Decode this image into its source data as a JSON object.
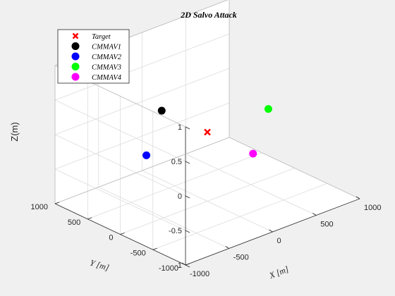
{
  "chart_data": {
    "type": "scatter",
    "title": "2D Salvo Attack",
    "xlabel": "X [m]",
    "ylabel": "Y [m]",
    "zlabel": "Z(m)",
    "xlim": [
      -1000,
      1000
    ],
    "ylim": [
      -1000,
      1000
    ],
    "zlim": [
      -1,
      1
    ],
    "xticks": [
      "-1000",
      "-500",
      "0",
      "500",
      "1000"
    ],
    "yticks": [
      "-1000",
      "-500",
      "0",
      "500",
      "1000"
    ],
    "zticks": [
      "-1",
      "-0.5",
      "0",
      "0.5",
      "1"
    ],
    "grid": true,
    "legend_position": "top-left",
    "view": "3d",
    "series": [
      {
        "name": "Target",
        "marker": "x",
        "color": "#ff0000",
        "x": 0,
        "y": 0,
        "z": 0
      },
      {
        "name": "CMMAV1",
        "marker": "o",
        "color": "#000000",
        "x": 0,
        "y": 700,
        "z": 0
      },
      {
        "name": "CMMAV2",
        "marker": "o",
        "color": "#0000ff",
        "x": -700,
        "y": 0,
        "z": 0
      },
      {
        "name": "CMMAV3",
        "marker": "o",
        "color": "#00ff00",
        "x": 700,
        "y": 0,
        "z": 0
      },
      {
        "name": "CMMAV4",
        "marker": "o",
        "color": "#ff00ff",
        "x": 0,
        "y": -700,
        "z": 0
      }
    ]
  }
}
